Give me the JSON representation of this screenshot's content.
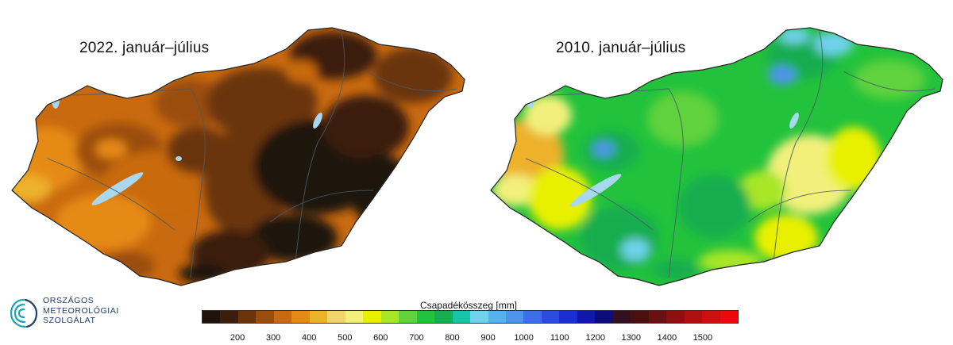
{
  "maps": [
    {
      "title": "2022. január–július"
    },
    {
      "title": "2010. január–július"
    }
  ],
  "logo": {
    "lines": [
      "ORSZÁGOS",
      "METEOROLÓGIAI",
      "SZOLGÁLAT"
    ],
    "icon": "swirl-logo-icon",
    "color": "#1f3d6b"
  },
  "colorbar": {
    "label": "Csapadékösszeg [mm]",
    "ticks": [
      "200",
      "300",
      "400",
      "500",
      "600",
      "700",
      "800",
      "900",
      "1000",
      "1100",
      "1200",
      "1300",
      "1400",
      "1500"
    ],
    "colors": [
      "#1f120a",
      "#3b1f0c",
      "#6b340c",
      "#9b4d0c",
      "#c96a10",
      "#e68a17",
      "#edb12a",
      "#f0d56a",
      "#f2f07a",
      "#e8f000",
      "#a8e628",
      "#5fd23c",
      "#22c23c",
      "#17ad50",
      "#19c3a8",
      "#6fd2ec",
      "#55b2ee",
      "#4d94ec",
      "#3c6ee8",
      "#2c4ce0",
      "#1c2ed0",
      "#1018a8",
      "#0c0c7a",
      "#321020",
      "#4a1010",
      "#6a1010",
      "#8c1010",
      "#ac1010",
      "#cc1010",
      "#ea0a0a"
    ],
    "legend_title": "Csapadékösszeg [mm]"
  }
}
